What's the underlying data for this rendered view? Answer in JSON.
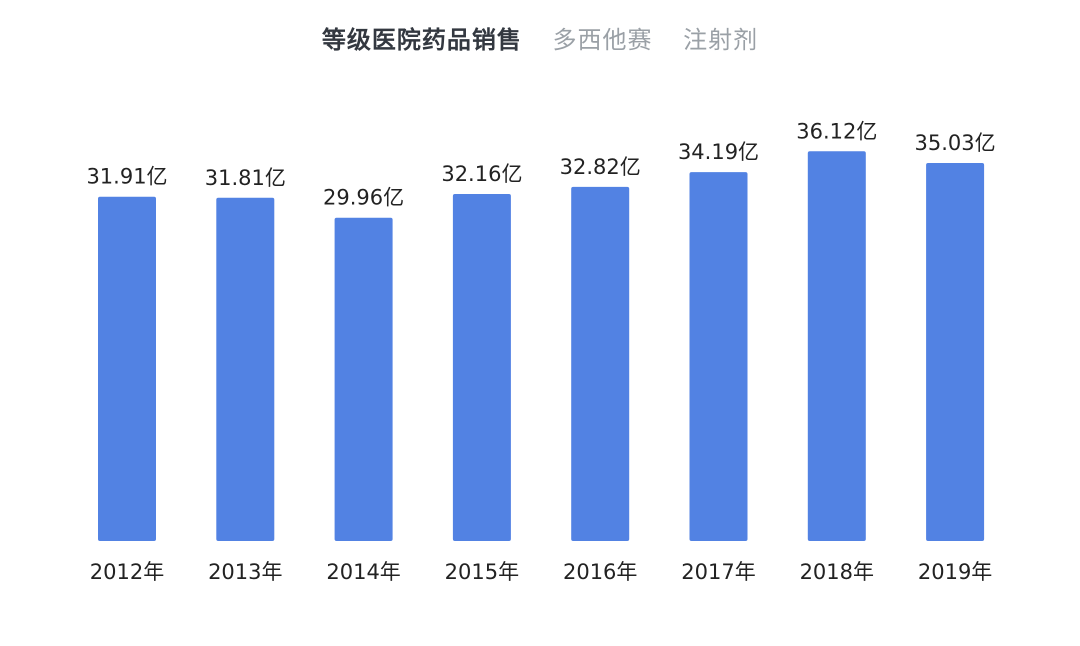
{
  "title": {
    "main": "等级医院药品销售",
    "sub1": "多西他赛",
    "sub2": "注射剂"
  },
  "chart_data": {
    "type": "bar",
    "categories": [
      "2012年",
      "2013年",
      "2014年",
      "2015年",
      "2016年",
      "2017年",
      "2018年",
      "2019年"
    ],
    "values": [
      31.91,
      31.81,
      29.96,
      32.16,
      32.82,
      34.19,
      36.12,
      35.03
    ],
    "value_labels": [
      "31.91亿",
      "31.81亿",
      "29.96亿",
      "32.16亿",
      "32.82亿",
      "34.19亿",
      "36.12亿",
      "35.03亿"
    ],
    "unit": "亿",
    "grid": false,
    "legend": "none",
    "bar_color": "#5282e3",
    "label_color": "#222222",
    "title_color": "#333840",
    "subtitle_color": "#9aa0a6"
  }
}
